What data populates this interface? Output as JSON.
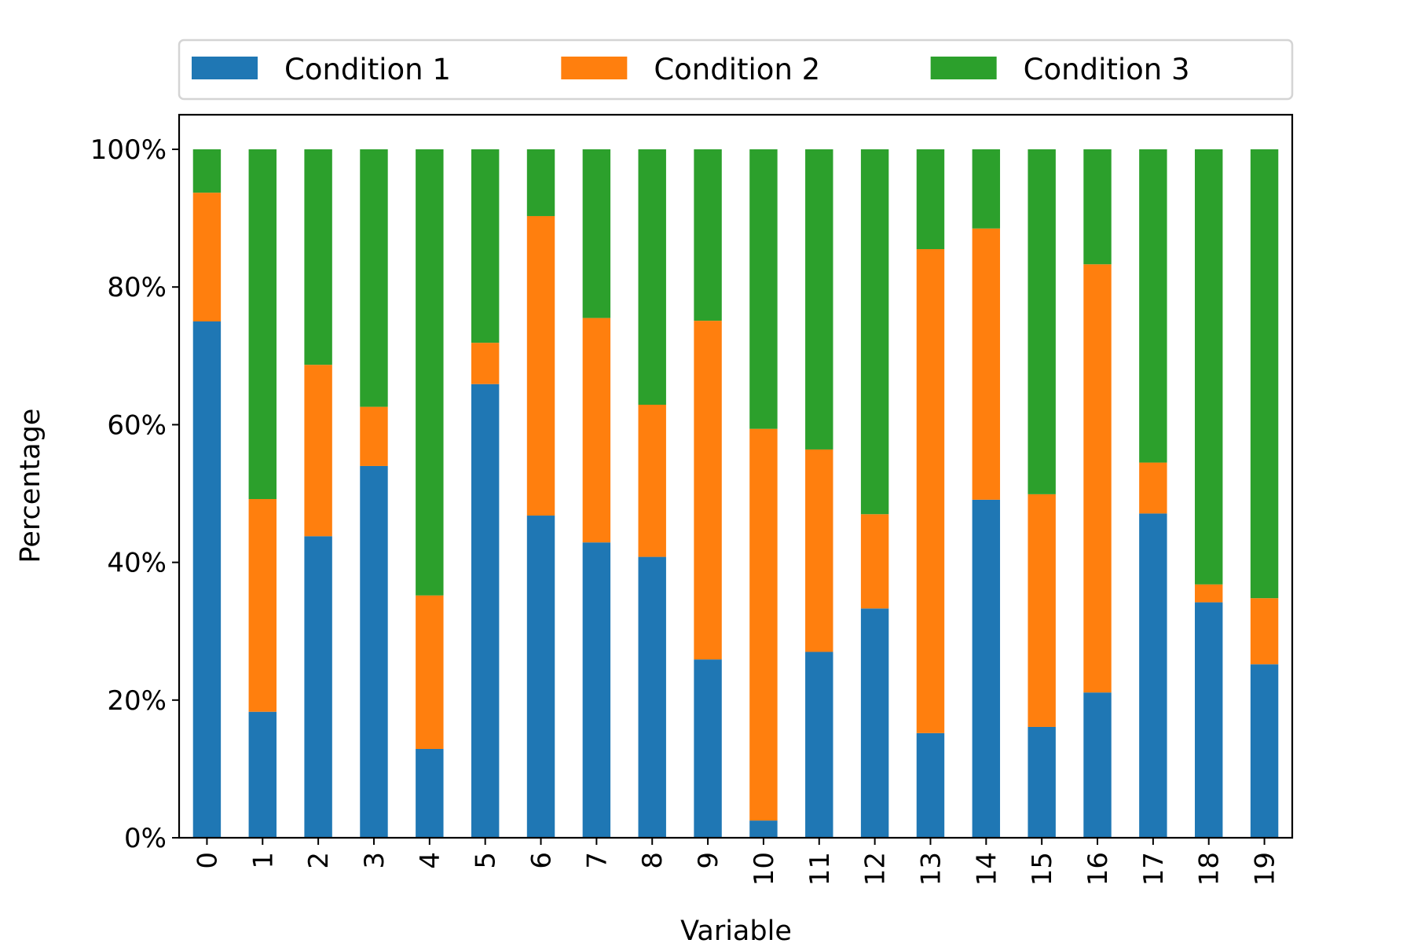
{
  "chart_data": {
    "type": "bar",
    "stacked": true,
    "normalized_percent": true,
    "title": "",
    "xlabel": "Variable",
    "ylabel": "Percentage",
    "ylim": [
      0,
      100
    ],
    "yticks": [
      0,
      20,
      40,
      60,
      80,
      100
    ],
    "ytick_labels": [
      "0%",
      "20%",
      "40%",
      "60%",
      "80%",
      "100%"
    ],
    "categories": [
      "0",
      "1",
      "2",
      "3",
      "4",
      "5",
      "6",
      "7",
      "8",
      "9",
      "10",
      "11",
      "12",
      "13",
      "14",
      "15",
      "16",
      "17",
      "18",
      "19"
    ],
    "legend_position": "top, outside plot, three columns",
    "grid": false,
    "series": [
      {
        "name": "Condition 1",
        "color": "#1f77b4",
        "values": [
          75.0,
          18.3,
          43.8,
          54.0,
          12.9,
          65.9,
          46.8,
          42.9,
          40.8,
          25.9,
          2.5,
          27.0,
          33.3,
          15.2,
          49.1,
          16.1,
          21.1,
          47.1,
          34.2,
          25.2
        ]
      },
      {
        "name": "Condition 2",
        "color": "#ff7f0e",
        "values": [
          18.7,
          30.9,
          24.9,
          8.6,
          22.3,
          6.0,
          43.5,
          32.6,
          22.1,
          49.2,
          56.9,
          29.4,
          13.7,
          70.3,
          39.4,
          33.8,
          62.2,
          7.4,
          2.6,
          9.6
        ]
      },
      {
        "name": "Condition 3",
        "color": "#2ca02c",
        "values": [
          6.3,
          50.8,
          31.3,
          37.4,
          64.8,
          28.1,
          9.7,
          24.5,
          37.1,
          24.9,
          40.6,
          43.6,
          53.0,
          14.5,
          11.5,
          50.1,
          16.7,
          45.5,
          63.2,
          65.2
        ]
      }
    ]
  }
}
